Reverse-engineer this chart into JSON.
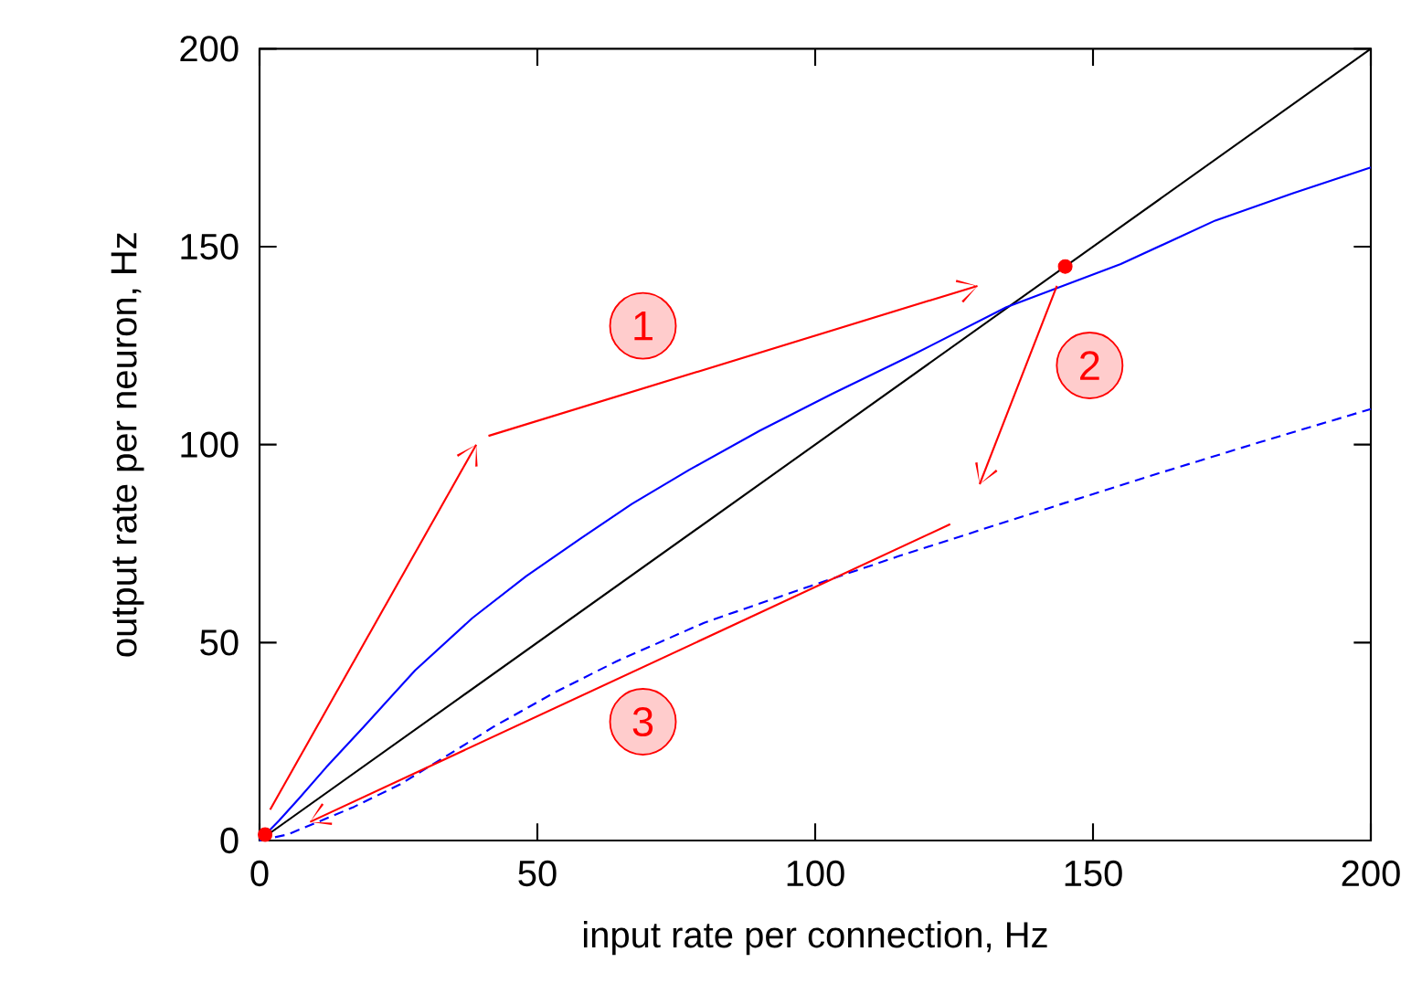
{
  "chart_data": {
    "type": "line",
    "xlabel": "input rate per connection, Hz",
    "ylabel": "output rate per neuron, Hz",
    "xlim": [
      0,
      200
    ],
    "ylim": [
      0,
      200
    ],
    "xticks": [
      0,
      50,
      100,
      150,
      200
    ],
    "yticks": [
      0,
      50,
      100,
      150,
      200
    ],
    "series": [
      {
        "color": "#000000",
        "line_style": "solid",
        "x": [
          0,
          200
        ],
        "values": [
          0,
          200
        ]
      },
      {
        "color": "#0000ff",
        "line_style": "solid",
        "x": [
          0,
          3.5,
          7.1,
          12,
          18.8,
          28,
          38.3,
          48,
          57.8,
          67,
          77.3,
          90,
          103,
          118,
          134.4,
          155,
          172,
          186,
          200
        ],
        "values": [
          0,
          5,
          10.6,
          18.5,
          28.8,
          43,
          56.2,
          66.8,
          76.3,
          85,
          93.6,
          103.5,
          112.8,
          123,
          134.7,
          145.6,
          156.6,
          163.5,
          170
        ]
      },
      {
        "color": "#0000ff",
        "line_style": "dashed",
        "x": [
          0,
          5,
          9.7,
          17,
          25.3,
          33,
          42.2,
          53,
          64.3,
          80,
          99.4,
          115,
          129,
          145,
          161.7,
          180,
          200
        ],
        "values": [
          0,
          1.5,
          4.2,
          8.5,
          14.2,
          20.8,
          28.8,
          37.3,
          45.3,
          55,
          64.4,
          71.8,
          78.1,
          85.3,
          92.7,
          100.6,
          109
        ]
      },
      {
        "type": "scatter",
        "color": "#ff0000",
        "marker": "circle",
        "x": [
          1,
          145
        ],
        "values": [
          1.5,
          145
        ]
      }
    ],
    "annotations": [
      "1",
      "2",
      "3"
    ]
  }
}
